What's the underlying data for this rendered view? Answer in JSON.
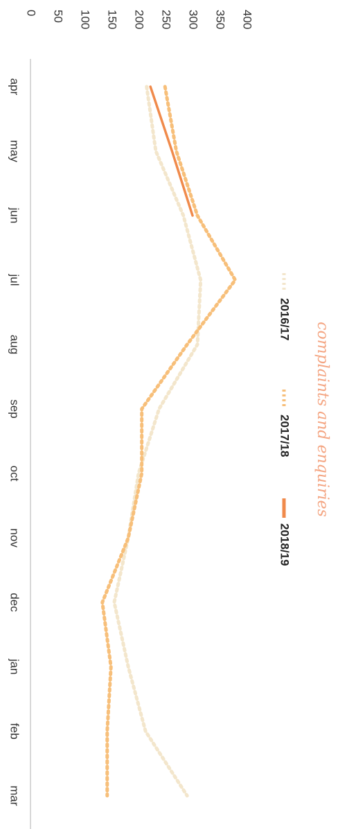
{
  "chart_data": {
    "type": "line",
    "title": "complaints and enquiries",
    "categories": [
      "apr",
      "may",
      "jun",
      "jul",
      "aug",
      "sep",
      "oct",
      "nov",
      "dec",
      "jan",
      "feb",
      "mar"
    ],
    "series": [
      {
        "name": "2016/17",
        "color": "#f3e6cc",
        "style": "dotted",
        "values": [
          215,
          232,
          283,
          315,
          309,
          238,
          200,
          181,
          155,
          181,
          213,
          290
        ]
      },
      {
        "name": "2017/18",
        "color": "#f7bf7a",
        "style": "dotted",
        "values": [
          249,
          270,
          309,
          379,
          290,
          206,
          206,
          181,
          133,
          149,
          142,
          142
        ]
      },
      {
        "name": "2018/19",
        "color": "#f08a4b",
        "style": "solid",
        "values": [
          222,
          262,
          300,
          null,
          null,
          null,
          null,
          null,
          null,
          null,
          null,
          null
        ]
      }
    ],
    "ylim": [
      0,
      400
    ],
    "yticks": [
      0,
      50,
      100,
      150,
      200,
      250,
      300,
      350,
      400
    ],
    "grid": false
  }
}
